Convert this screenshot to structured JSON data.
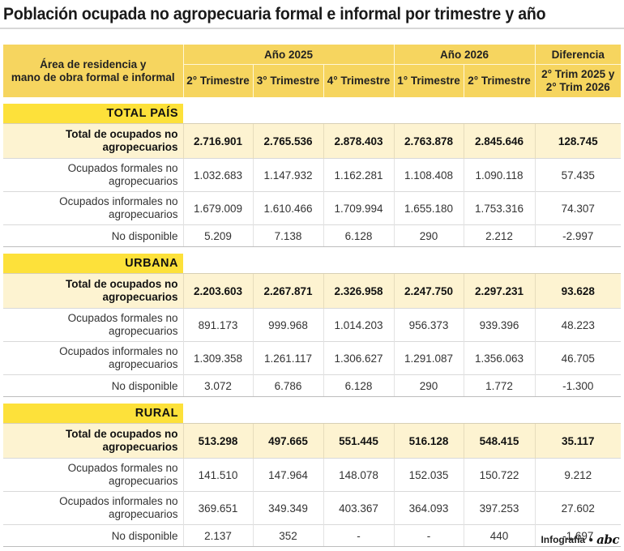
{
  "title": "Población ocupada no agropecuaria formal e informal por trimestre y año",
  "header": {
    "row_label_1": "Área de residencia y",
    "row_label_2": "mano de obra formal e informal",
    "year_2025": "Año 2025",
    "year_2026": "Año 2026",
    "difference": "Diferencia",
    "columns": [
      "2° Trimestre",
      "3° Trimestre",
      "4° Trimestre",
      "1° Trimestre",
      "2° Trimestre"
    ],
    "diff_sub_1": "2° Trim 2025 y",
    "diff_sub_2": "2° Trim 2026"
  },
  "sections": [
    {
      "name": "TOTAL PAÍS",
      "rows": [
        {
          "label_1": "Total de ocupados no",
          "label_2": "agropecuarios",
          "values": [
            "2.716.901",
            "2.765.536",
            "2.878.403",
            "2.763.878",
            "2.845.646",
            "128.745"
          ]
        },
        {
          "label_1": "Ocupados formales no",
          "label_2": "agropecuarios",
          "values": [
            "1.032.683",
            "1.147.932",
            "1.162.281",
            "1.108.408",
            "1.090.118",
            "57.435"
          ]
        },
        {
          "label_1": "Ocupados informales no",
          "label_2": "agropecuarios",
          "values": [
            "1.679.009",
            "1.610.466",
            "1.709.994",
            "1.655.180",
            "1.753.316",
            "74.307"
          ]
        },
        {
          "label_1": "No disponible",
          "label_2": "",
          "values": [
            "5.209",
            "7.138",
            "6.128",
            "290",
            "2.212",
            "-2.997"
          ]
        }
      ]
    },
    {
      "name": "URBANA",
      "rows": [
        {
          "label_1": "Total de ocupados no",
          "label_2": "agropecuarios",
          "values": [
            "2.203.603",
            "2.267.871",
            "2.326.958",
            "2.247.750",
            "2.297.231",
            "93.628"
          ]
        },
        {
          "label_1": "Ocupados formales no",
          "label_2": "agropecuarios",
          "values": [
            "891.173",
            "999.968",
            "1.014.203",
            "956.373",
            "939.396",
            "48.223"
          ]
        },
        {
          "label_1": "Ocupados informales no",
          "label_2": "agropecuarios",
          "values": [
            "1.309.358",
            "1.261.117",
            "1.306.627",
            "1.291.087",
            "1.356.063",
            "46.705"
          ]
        },
        {
          "label_1": "No disponible",
          "label_2": "",
          "values": [
            "3.072",
            "6.786",
            "6.128",
            "290",
            "1.772",
            "-1.300"
          ]
        }
      ]
    },
    {
      "name": "RURAL",
      "rows": [
        {
          "label_1": "Total de ocupados no",
          "label_2": "agropecuarios",
          "values": [
            "513.298",
            "497.665",
            "551.445",
            "516.128",
            "548.415",
            "35.117"
          ]
        },
        {
          "label_1": "Ocupados formales no",
          "label_2": "agropecuarios",
          "values": [
            "141.510",
            "147.964",
            "148.078",
            "152.035",
            "150.722",
            "9.212"
          ]
        },
        {
          "label_1": "Ocupados informales no",
          "label_2": "agropecuarios",
          "values": [
            "369.651",
            "349.349",
            "403.367",
            "364.093",
            "397.253",
            "27.602"
          ]
        },
        {
          "label_1": "No disponible",
          "label_2": "",
          "values": [
            "2.137",
            "352",
            "-",
            "-",
            "440",
            "-1.697"
          ]
        }
      ]
    }
  ],
  "footer": {
    "credit": "Infografía",
    "brand": "abc"
  },
  "colors": {
    "header_bg": "#f6d55f",
    "section_bg": "#fde13a",
    "total_row_bg": "#fdf3d1"
  }
}
